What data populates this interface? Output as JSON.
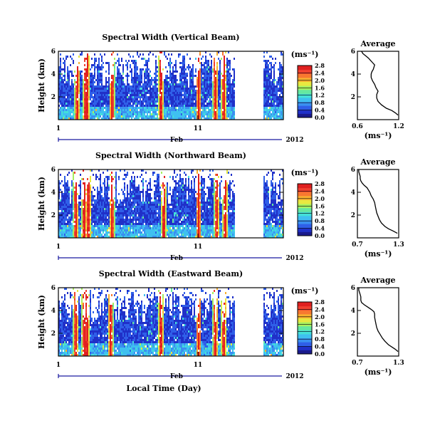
{
  "figure": {
    "xlabel_bottom": "Local Time (Day)"
  },
  "colorbar_unit": "(ms⁻¹)",
  "avg_xlabel": "(ms⁻¹)",
  "avg_title": "Average",
  "colormap": [
    "#ffffff",
    "#1a1a8c",
    "#2030c8",
    "#2f5fe8",
    "#3a90f0",
    "#3fc0f0",
    "#44e0d8",
    "#66e8a0",
    "#a8f060",
    "#e8e840",
    "#f8b030",
    "#f87830",
    "#f04030",
    "#e02020"
  ],
  "chart_data": [
    {
      "type": "heatmap",
      "title": "Spectral Width (Vertical Beam)",
      "ylabel": "Height (km)",
      "ylim": [
        0,
        6
      ],
      "yticks": [
        2,
        4,
        6
      ],
      "x_ticks": [
        "1",
        "11"
      ],
      "x_tick_days": [
        1,
        11
      ],
      "date_label": "Feb",
      "year_label": "2012",
      "colorbar_ticks": [
        "0.0",
        "0.4",
        "0.8",
        "1.2",
        "1.6",
        "2.0",
        "2.4",
        "2.8"
      ],
      "colorbar_values": [
        0.0,
        0.4,
        0.8,
        1.2,
        1.6,
        2.0,
        2.4,
        2.8
      ],
      "colorbar_range": [
        0,
        2.8
      ],
      "high_width_days": [
        2.3,
        2.9,
        3.0,
        4.8,
        8.3,
        11.0,
        12.2,
        12.8
      ],
      "data_gaps_days": [
        [
          13.6,
          15.6
        ]
      ],
      "avg": {
        "title": "Average",
        "xlim": [
          0.6,
          1.2
        ],
        "xticks": [
          "0.6",
          "1.2"
        ],
        "xtick_values": [
          0.6,
          1.2
        ],
        "ylim": [
          0,
          6
        ],
        "yticks": [
          2,
          4,
          6
        ],
        "x": [
          1.19,
          1.15,
          1.1,
          1.02,
          0.95,
          0.9,
          0.88,
          0.88,
          0.9,
          0.87,
          0.85,
          0.82,
          0.8,
          0.8,
          0.81,
          0.83,
          0.84,
          0.85,
          0.82,
          0.79,
          0.76,
          0.72,
          0.68,
          0.66
        ],
        "y": [
          0.4,
          0.6,
          0.8,
          1.0,
          1.3,
          1.6,
          1.9,
          2.2,
          2.5,
          2.8,
          3.1,
          3.4,
          3.7,
          4.0,
          4.2,
          4.4,
          4.6,
          4.8,
          5.0,
          5.2,
          5.4,
          5.6,
          5.8,
          6.0
        ]
      }
    },
    {
      "type": "heatmap",
      "title": "Spectral Width (Northward Beam)",
      "ylabel": "Height (km)",
      "ylim": [
        0,
        6
      ],
      "yticks": [
        2,
        4,
        6
      ],
      "x_ticks": [
        "1",
        "11"
      ],
      "x_tick_days": [
        1,
        11
      ],
      "date_label": "Feb",
      "year_label": "2012",
      "colorbar_ticks": [
        "0.0",
        "0.4",
        "0.8",
        "1.2",
        "1.6",
        "2.0",
        "2.4",
        "2.8"
      ],
      "colorbar_values": [
        0.0,
        0.4,
        0.8,
        1.2,
        1.6,
        2.0,
        2.4,
        2.8
      ],
      "colorbar_range": [
        0,
        2.8
      ],
      "high_width_days": [
        2.2,
        2.8,
        3.1,
        4.8,
        8.5,
        11.0,
        12.3,
        12.9
      ],
      "data_gaps_days": [
        [
          13.6,
          15.6
        ]
      ],
      "avg": {
        "title": "Average",
        "xlim": [
          0.7,
          1.3
        ],
        "xticks": [
          "0.7",
          "1.3"
        ],
        "xtick_values": [
          0.7,
          1.3
        ],
        "ylim": [
          0,
          6
        ],
        "yticks": [
          2,
          4,
          6
        ],
        "x": [
          1.28,
          1.22,
          1.15,
          1.1,
          1.05,
          1.02,
          1.0,
          0.98,
          0.97,
          0.96,
          0.95,
          0.93,
          0.9,
          0.88,
          0.86,
          0.84,
          0.8,
          0.77,
          0.75,
          0.74,
          0.74,
          0.73,
          0.72,
          0.72
        ],
        "y": [
          0.4,
          0.6,
          0.8,
          1.0,
          1.3,
          1.6,
          1.9,
          2.2,
          2.5,
          2.8,
          3.1,
          3.4,
          3.7,
          4.0,
          4.2,
          4.4,
          4.6,
          4.8,
          5.0,
          5.2,
          5.4,
          5.6,
          5.8,
          6.0
        ]
      }
    },
    {
      "type": "heatmap",
      "title": "Spectral Width (Eastward Beam)",
      "ylabel": "Height (km)",
      "ylim": [
        0,
        6
      ],
      "yticks": [
        2,
        4,
        6
      ],
      "x_ticks": [
        "1",
        "11"
      ],
      "x_tick_days": [
        1,
        11
      ],
      "date_label": "Feb",
      "year_label": "2012",
      "colorbar_ticks": [
        "0.0",
        "0.4",
        "0.8",
        "1.2",
        "1.6",
        "2.0",
        "2.4",
        "2.8"
      ],
      "colorbar_values": [
        0.0,
        0.4,
        0.8,
        1.2,
        1.6,
        2.0,
        2.4,
        2.8
      ],
      "colorbar_range": [
        0,
        2.8
      ],
      "high_width_days": [
        2.2,
        2.8,
        3.0,
        4.7,
        8.3,
        11.0,
        12.2,
        12.8
      ],
      "data_gaps_days": [
        [
          13.6,
          15.6
        ]
      ],
      "avg": {
        "title": "Average",
        "xlim": [
          0.7,
          1.3
        ],
        "xticks": [
          "0.7",
          "1.3"
        ],
        "xtick_values": [
          0.7,
          1.3
        ],
        "ylim": [
          0,
          6
        ],
        "yticks": [
          2,
          4,
          6
        ],
        "x": [
          1.29,
          1.25,
          1.2,
          1.15,
          1.1,
          1.06,
          1.03,
          1.0,
          0.98,
          0.97,
          0.96,
          0.95,
          0.95,
          0.94,
          0.9,
          0.85,
          0.8,
          0.76,
          0.75,
          0.75,
          0.74,
          0.73,
          0.72,
          0.72
        ],
        "y": [
          0.4,
          0.6,
          0.8,
          1.0,
          1.3,
          1.6,
          1.9,
          2.2,
          2.5,
          2.8,
          3.1,
          3.4,
          3.7,
          3.9,
          4.1,
          4.3,
          4.5,
          4.7,
          4.9,
          5.2,
          5.4,
          5.6,
          5.8,
          6.0
        ]
      }
    }
  ]
}
